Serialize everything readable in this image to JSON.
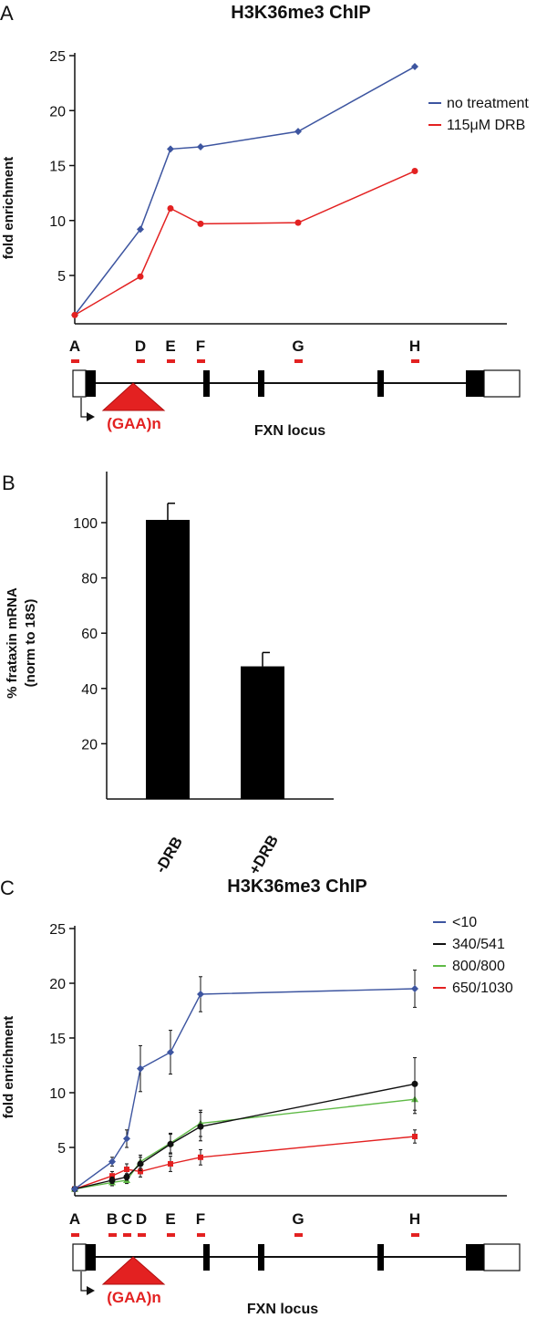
{
  "colors": {
    "blue": "#3d55a0",
    "red": "#e32121",
    "black": "#111111",
    "green": "#5fba46",
    "bar": "#000000"
  },
  "panelA": {
    "letter": "A",
    "title": "H3K36me3 ChIP",
    "ylabel": "fold enrichment",
    "ylim": [
      1,
      25
    ],
    "yticks": [
      5,
      10,
      15,
      20,
      25
    ],
    "legend": [
      {
        "label": "no treatment",
        "color": "#3d55a0"
      },
      {
        "label": "115μM DRB",
        "color": "#e32121"
      }
    ],
    "locus_label": "FXN locus",
    "gaa_label": "(GAA)n",
    "sites": [
      "A",
      "D",
      "E",
      "F",
      "G",
      "H"
    ]
  },
  "panelB": {
    "letter": "B",
    "ylabel_line1": "% frataxin mRNA",
    "ylabel_line2": "(norm to 18S)",
    "ylim": [
      0,
      115
    ],
    "yticks": [
      20,
      40,
      60,
      80,
      100
    ]
  },
  "panelC": {
    "letter": "C",
    "title": "H3K36me3 ChIP",
    "ylabel": "fold enrichment",
    "ylim": [
      1,
      25
    ],
    "yticks": [
      5,
      10,
      15,
      20,
      25
    ],
    "legend": [
      {
        "label": "<10",
        "color": "#3d55a0"
      },
      {
        "label": "340/541",
        "color": "#111111"
      },
      {
        "label": "800/800",
        "color": "#5fba46"
      },
      {
        "label": "650/1030",
        "color": "#e32121"
      }
    ],
    "locus_label": "FXN locus",
    "gaa_label": "(GAA)n",
    "sites": [
      "A",
      "B",
      "C",
      "D",
      "E",
      "F",
      "G",
      "H"
    ]
  },
  "chart_data": [
    {
      "type": "line",
      "title": "H3K36me3 ChIP",
      "xlabel": "",
      "ylabel": "fold enrichment",
      "categories": [
        "A",
        "D",
        "E",
        "F",
        "G",
        "H"
      ],
      "ylim": [
        1,
        25
      ],
      "series": [
        {
          "name": "no treatment",
          "color": "#3d55a0",
          "values": [
            1.4,
            9.2,
            16.5,
            16.7,
            18.1,
            24.0
          ]
        },
        {
          "name": "115μM DRB",
          "color": "#e32121",
          "values": [
            1.4,
            4.9,
            11.1,
            9.7,
            9.8,
            14.5
          ]
        }
      ]
    },
    {
      "type": "bar",
      "title": "",
      "xlabel": "",
      "ylabel": "% frataxin mRNA (norm to 18S)",
      "categories": [
        "-DRB",
        "+DRB"
      ],
      "values": [
        101,
        48
      ],
      "errors": [
        6,
        5
      ],
      "ylim": [
        0,
        115
      ]
    },
    {
      "type": "line",
      "title": "H3K36me3 ChIP",
      "xlabel": "",
      "ylabel": "fold enrichment",
      "categories": [
        "A",
        "B",
        "C",
        "D",
        "E",
        "F",
        "H"
      ],
      "ylim": [
        1,
        25
      ],
      "series": [
        {
          "name": "<10",
          "color": "#3d55a0",
          "values": [
            1.2,
            3.7,
            5.8,
            12.2,
            13.7,
            19.0,
            19.5
          ],
          "errors": [
            0.2,
            0.4,
            0.8,
            2.1,
            2.0,
            1.6,
            1.7
          ]
        },
        {
          "name": "340/541",
          "color": "#111111",
          "values": [
            1.2,
            2.0,
            2.3,
            3.5,
            5.3,
            6.9,
            10.8
          ],
          "errors": [
            0.2,
            0.3,
            0.3,
            0.6,
            0.9,
            1.3,
            2.4
          ]
        },
        {
          "name": "800/800",
          "color": "#5fba46",
          "values": [
            1.2,
            1.8,
            2.0,
            3.7,
            5.4,
            7.2,
            9.4
          ],
          "errors": [
            0.2,
            0.3,
            0.3,
            0.6,
            0.9,
            1.2,
            1.3
          ]
        },
        {
          "name": "650/1030",
          "color": "#e32121",
          "values": [
            1.2,
            2.4,
            3.0,
            2.8,
            3.5,
            4.1,
            6.0
          ],
          "errors": [
            0.2,
            0.4,
            0.5,
            0.5,
            0.7,
            0.7,
            0.6
          ]
        }
      ]
    }
  ]
}
